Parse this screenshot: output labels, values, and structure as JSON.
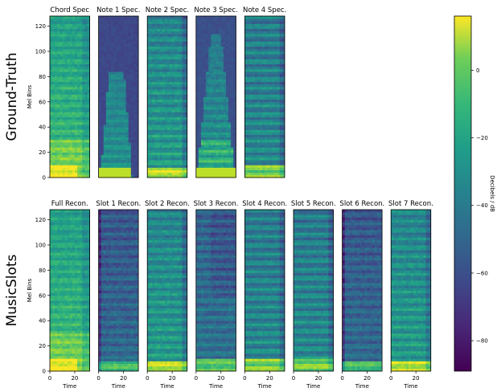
{
  "chart_data": {
    "type": "heatmap",
    "rows": [
      {
        "label": "Ground-Truth",
        "ylabel": "Mel Bins",
        "xlabel": "",
        "show_xticks": false,
        "panels": [
          {
            "title": "Chord Spec",
            "kind": "chord",
            "show_yticks": true
          },
          {
            "title": "Note 1 Spec.",
            "kind": "note1",
            "show_yticks": false
          },
          {
            "title": "Note 2 Spec.",
            "kind": "note2",
            "show_yticks": false
          },
          {
            "title": "Note 3 Spec.",
            "kind": "note3",
            "show_yticks": false
          },
          {
            "title": "Note 4 Spec.",
            "kind": "note4",
            "show_yticks": false
          }
        ]
      },
      {
        "label": "MusicSlots",
        "ylabel": "Mel Bins",
        "xlabel": "Time",
        "show_xticks": true,
        "panels": [
          {
            "title": "Full Recon.",
            "kind": "chord",
            "show_yticks": true
          },
          {
            "title": "Slot 1 Recon.",
            "kind": "slot_dark",
            "show_yticks": false
          },
          {
            "title": "Slot 2 Recon.",
            "kind": "note2",
            "show_yticks": false
          },
          {
            "title": "Slot 3 Recon.",
            "kind": "slot3",
            "show_yticks": false
          },
          {
            "title": "Slot 4 Recon.",
            "kind": "note4",
            "show_yticks": false
          },
          {
            "title": "Slot 5 Recon.",
            "kind": "note4",
            "show_yticks": false
          },
          {
            "title": "Slot 6 Recon.",
            "kind": "slot_dark",
            "show_yticks": false
          },
          {
            "title": "Slot 7 Recon.",
            "kind": "note2",
            "show_yticks": false
          }
        ]
      }
    ],
    "xlim": [
      0,
      32
    ],
    "ylim": [
      0,
      128
    ],
    "xticks": [
      0,
      20
    ],
    "yticks": [
      0,
      20,
      40,
      60,
      80,
      100,
      120
    ],
    "colorbar": {
      "label": "Decibels / dB",
      "range": [
        -89,
        16
      ],
      "ticks": [
        0,
        -20,
        -40,
        -60,
        -80
      ],
      "tick_labels": [
        "0",
        "−20",
        "−40",
        "−60",
        "−80"
      ],
      "colormap": "viridis"
    }
  }
}
